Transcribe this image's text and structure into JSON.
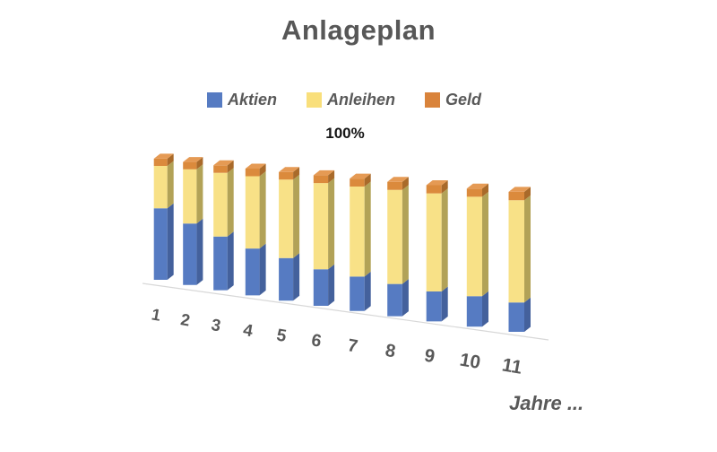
{
  "page": {
    "background": "#ffffff"
  },
  "chart": {
    "title": "Anlageplan",
    "annotation": "100%",
    "xlabel": "Jahre ..."
  },
  "chart_data": {
    "type": "bar",
    "subtype": "3d-100-percent-stacked-column",
    "title": "Anlageplan",
    "annotation": "100%",
    "xlabel": "Jahre ...",
    "unit": "%",
    "legend_position": "top",
    "grid": false,
    "ylim": [
      0,
      100
    ],
    "categories": [
      "1",
      "2",
      "3",
      "4",
      "5",
      "6",
      "7",
      "8",
      "9",
      "10",
      "11"
    ],
    "series": [
      {
        "name": "Aktien",
        "color": "#567BC2",
        "side_color": "#44619C",
        "values": [
          59,
          50,
          43,
          37,
          33,
          28,
          26,
          24,
          22,
          22,
          21
        ]
      },
      {
        "name": "Anleihen",
        "color": "#F8E187",
        "side_color": "#B2A257",
        "values": [
          35,
          44,
          51,
          57,
          61,
          66,
          68,
          70,
          72,
          72,
          73
        ]
      },
      {
        "name": "Geld",
        "color": "#DB8A3C",
        "side_color": "#A96A2A",
        "top_color": "#E59A54",
        "values": [
          6,
          6,
          6,
          6,
          6,
          6,
          6,
          6,
          6,
          6,
          6
        ]
      }
    ]
  },
  "legend": {
    "items": [
      {
        "label": "Aktien",
        "color": "#567BC2"
      },
      {
        "label": "Anleihen",
        "color": "#F9DF7B"
      },
      {
        "label": "Geld",
        "color": "#D9833B"
      }
    ]
  },
  "colors": {
    "text": "#595959",
    "annotation_text": "#141414",
    "baseline": "#D8D8D8"
  }
}
